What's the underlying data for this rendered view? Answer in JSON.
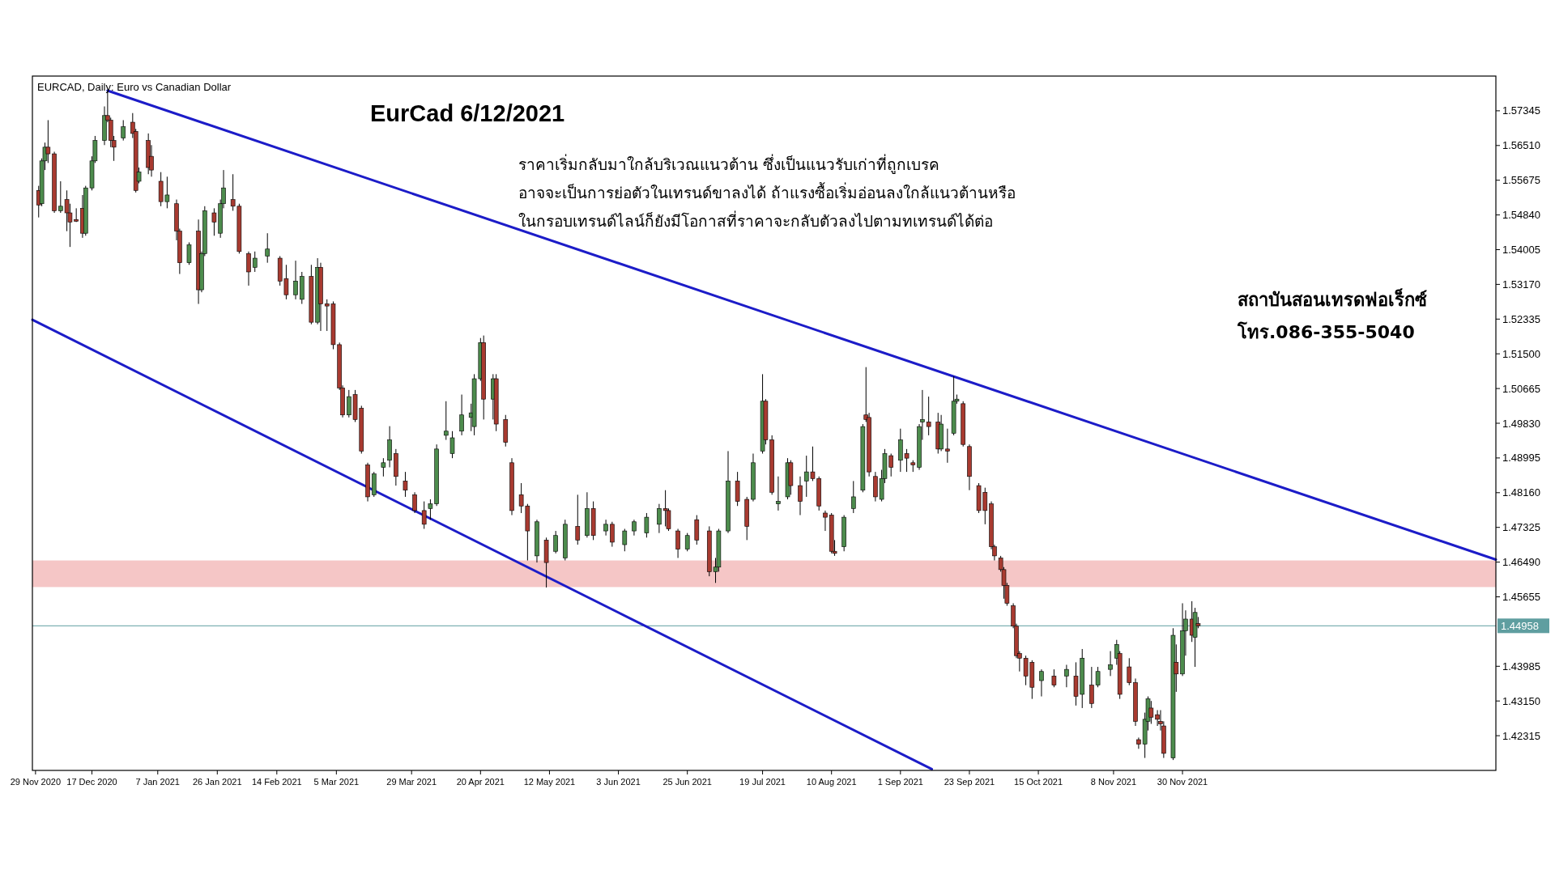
{
  "chart_data": {
    "type": "candlestick",
    "title": "EurCad 6/12/2021",
    "subtitle": "EURCAD, Daily:  Euro vs Canadian Dollar",
    "annotations": [
      "ราคาเริ่มกลับมาใกล้บริเวณแนวต้าน ซึ่งเป็นแนวรับเก่าที่ถูกเบรค",
      "อาจจะเป็นการย่อตัวในเทรนด์ขาลงได้ ถ้าแรงซื้อเริ่มอ่อนลงใกล้แนวต้านหรือ",
      "ในกรอบเทรนด์ไลน์ก็ยังมีโอกาสที่ราคาจะกลับตัวลงไปตามทเทรนด์ได้ต่อ",
      "สถาบันสอนเทรดฟอเร็กซ์",
      "โทร.086-355-5040"
    ],
    "xlim": [
      "2020-11-28",
      "2022-03-10"
    ],
    "xticks": [
      {
        "value": "2020-11-29",
        "label": "29 Nov 2020"
      },
      {
        "value": "2020-12-17",
        "label": "17 Dec 2020"
      },
      {
        "value": "2021-01-07",
        "label": "7 Jan 2021"
      },
      {
        "value": "2021-01-26",
        "label": "26 Jan 2021"
      },
      {
        "value": "2021-02-14",
        "label": "14 Feb 2021"
      },
      {
        "value": "2021-03-05",
        "label": "5 Mar 2021"
      },
      {
        "value": "2021-03-29",
        "label": "29 Mar 2021"
      },
      {
        "value": "2021-04-20",
        "label": "20 Apr 2021"
      },
      {
        "value": "2021-05-12",
        "label": "12 May 2021"
      },
      {
        "value": "2021-06-03",
        "label": "3 Jun 2021"
      },
      {
        "value": "2021-06-25",
        "label": "25 Jun 2021"
      },
      {
        "value": "2021-07-19",
        "label": "19 Jul 2021"
      },
      {
        "value": "2021-08-10",
        "label": "10 Aug 2021"
      },
      {
        "value": "2021-09-01",
        "label": "1 Sep 2021"
      },
      {
        "value": "2021-09-23",
        "label": "23 Sep 2021"
      },
      {
        "value": "2021-10-15",
        "label": "15 Oct 2021"
      },
      {
        "value": "2021-11-08",
        "label": "8 Nov 2021"
      },
      {
        "value": "2021-11-30",
        "label": "30 Nov 2021"
      }
    ],
    "ylim": [
      1.4148,
      1.5818
    ],
    "yticks": [
      1.57345,
      {
        "value": 1.5651,
        "label": "1.56510"
      },
      1.55675,
      {
        "value": 1.5484,
        "label": "1.54840"
      },
      1.54005,
      {
        "value": 1.5317,
        "label": "1.53170"
      },
      1.52335,
      {
        "value": 1.515,
        "label": "1.51500"
      },
      1.50665,
      {
        "value": 1.4983,
        "label": "1.49830"
      },
      1.48995,
      {
        "value": 1.4816,
        "label": "1.48160"
      },
      1.47325,
      {
        "value": 1.4649,
        "label": "1.46490"
      },
      1.45655,
      1.43985,
      {
        "value": 1.4315,
        "label": "1.43150"
      },
      1.42315
    ],
    "ref_lines": [
      {
        "axis": "y",
        "value": 1.44958,
        "label": "1.44958",
        "color": "#5f9ea0"
      }
    ],
    "bands": [
      {
        "axis": "y",
        "from": 1.4589,
        "to": 1.4653,
        "color": "#f5c6c6"
      }
    ],
    "x": [
      "2020-11-30",
      "2020-12-01",
      "2020-12-02",
      "2020-12-03",
      "2020-12-05",
      "2020-12-07",
      "2020-12-09",
      "2020-12-10",
      "2020-12-12",
      "2020-12-14",
      "2020-12-15",
      "2020-12-17",
      "2020-12-18",
      "2020-12-21",
      "2020-12-22",
      "2020-12-23",
      "2020-12-24",
      "2020-12-27",
      "2020-12-30",
      "2020-12-31",
      "2021-01-01",
      "2021-01-04",
      "2021-01-05",
      "2021-01-08",
      "2021-01-10",
      "2021-01-13",
      "2021-01-14",
      "2021-01-17",
      "2021-01-20",
      "2021-01-21",
      "2021-01-22",
      "2021-01-25",
      "2021-01-27",
      "2021-01-28",
      "2021-01-31",
      "2021-02-02",
      "2021-02-05",
      "2021-02-07",
      "2021-02-11",
      "2021-02-15",
      "2021-02-17",
      "2021-02-20",
      "2021-02-22",
      "2021-02-25",
      "2021-02-27",
      "2021-02-28",
      "2021-03-02",
      "2021-03-04",
      "2021-03-06",
      "2021-03-07",
      "2021-03-09",
      "2021-03-11",
      "2021-03-13",
      "2021-03-15",
      "2021-03-17",
      "2021-03-20",
      "2021-03-22",
      "2021-03-24",
      "2021-03-27",
      "2021-03-30",
      "2021-04-02",
      "2021-04-04",
      "2021-04-06",
      "2021-04-09",
      "2021-04-11",
      "2021-04-14",
      "2021-04-17",
      "2021-04-18",
      "2021-04-20",
      "2021-04-21",
      "2021-04-24",
      "2021-04-25",
      "2021-04-28",
      "2021-04-30",
      "2021-05-03",
      "2021-05-05",
      "2021-05-08",
      "2021-05-11",
      "2021-05-14",
      "2021-05-17",
      "2021-05-21",
      "2021-05-24",
      "2021-05-26",
      "2021-05-30",
      "2021-06-01",
      "2021-06-05",
      "2021-06-08",
      "2021-06-12",
      "2021-06-16",
      "2021-06-18",
      "2021-06-19",
      "2021-06-22",
      "2021-06-25",
      "2021-06-28",
      "2021-07-02",
      "2021-07-04",
      "2021-07-05",
      "2021-07-08",
      "2021-07-11",
      "2021-07-14",
      "2021-07-16",
      "2021-07-19",
      "2021-07-20",
      "2021-07-22",
      "2021-07-24",
      "2021-07-27",
      "2021-07-28",
      "2021-07-31",
      "2021-08-02",
      "2021-08-04",
      "2021-08-06",
      "2021-08-08",
      "2021-08-10",
      "2021-08-11",
      "2021-08-14",
      "2021-08-17",
      "2021-08-20",
      "2021-08-21",
      "2021-08-22",
      "2021-08-24",
      "2021-08-26",
      "2021-08-27",
      "2021-08-29",
      "2021-09-01",
      "2021-09-03",
      "2021-09-05",
      "2021-09-07",
      "2021-09-08",
      "2021-09-10",
      "2021-09-13",
      "2021-09-14",
      "2021-09-16",
      "2021-09-18",
      "2021-09-19",
      "2021-09-21",
      "2021-09-23",
      "2021-09-26",
      "2021-09-28",
      "2021-09-30",
      "2021-10-01",
      "2021-10-03",
      "2021-10-04",
      "2021-10-05",
      "2021-10-07",
      "2021-10-08",
      "2021-10-09",
      "2021-10-11",
      "2021-10-13",
      "2021-10-16",
      "2021-10-20",
      "2021-10-24",
      "2021-10-27",
      "2021-10-29",
      "2021-11-01",
      "2021-11-03",
      "2021-11-07",
      "2021-11-09",
      "2021-11-10",
      "2021-11-13",
      "2021-11-15",
      "2021-11-16",
      "2021-11-18",
      "2021-11-19",
      "2021-11-20",
      "2021-11-22",
      "2021-11-23",
      "2021-11-24",
      "2021-11-27",
      "2021-11-28",
      "2021-11-30",
      "2021-12-01",
      "2021-12-03",
      "2021-12-04",
      "2021-12-05"
    ],
    "ohlc": [
      [
        1.5543,
        1.5554,
        1.5478,
        1.5508
      ],
      [
        1.5511,
        1.562,
        1.5505,
        1.5614
      ],
      [
        1.5614,
        1.5658,
        1.5592,
        1.5647
      ],
      [
        1.5647,
        1.5712,
        1.5609,
        1.5631
      ],
      [
        1.5631,
        1.5636,
        1.5489,
        1.5494
      ],
      [
        1.5494,
        1.5565,
        1.5489,
        1.5505
      ],
      [
        1.5521,
        1.5543,
        1.5445,
        1.5489
      ],
      [
        1.5489,
        1.5511,
        1.5407,
        1.5467
      ],
      [
        1.5473,
        1.55,
        1.5467,
        1.5469
      ],
      [
        1.55,
        1.5532,
        1.5429,
        1.544
      ],
      [
        1.544,
        1.5554,
        1.5434,
        1.5549
      ],
      [
        1.5549,
        1.5625,
        1.5543,
        1.5614
      ],
      [
        1.5614,
        1.5674,
        1.5609,
        1.5663
      ],
      [
        1.5663,
        1.5745,
        1.5652,
        1.5723
      ],
      [
        1.5723,
        1.5783,
        1.5707,
        1.5712
      ],
      [
        1.5712,
        1.5718,
        1.5647,
        1.5663
      ],
      [
        1.5663,
        1.5674,
        1.5614,
        1.5647
      ],
      [
        1.5669,
        1.5712,
        1.5663,
        1.5696
      ],
      [
        1.5707,
        1.5729,
        1.5669,
        1.568
      ],
      [
        1.5685,
        1.5691,
        1.5538,
        1.5543
      ],
      [
        1.5565,
        1.5598,
        1.556,
        1.5587
      ],
      [
        1.5663,
        1.568,
        1.5582,
        1.5598
      ],
      [
        1.5625,
        1.5652,
        1.5576,
        1.5592
      ],
      [
        1.5565,
        1.5587,
        1.5505,
        1.5516
      ],
      [
        1.5516,
        1.5576,
        1.55,
        1.5532
      ],
      [
        1.5511,
        1.5521,
        1.5423,
        1.5445
      ],
      [
        1.5445,
        1.5451,
        1.5342,
        1.5369
      ],
      [
        1.5369,
        1.5418,
        1.5364,
        1.5412
      ],
      [
        1.5445,
        1.5473,
        1.527,
        1.5304
      ],
      [
        1.5304,
        1.5396,
        1.5298,
        1.5391
      ],
      [
        1.5391,
        1.5505,
        1.5385,
        1.5494
      ],
      [
        1.5489,
        1.55,
        1.5434,
        1.5467
      ],
      [
        1.544,
        1.5521,
        1.5429,
        1.5511
      ],
      [
        1.5511,
        1.5592,
        1.55,
        1.5549
      ],
      [
        1.5521,
        1.5582,
        1.5494,
        1.5505
      ],
      [
        1.5505,
        1.5511,
        1.5391,
        1.5396
      ],
      [
        1.5391,
        1.5396,
        1.5314,
        1.5347
      ],
      [
        1.5358,
        1.5396,
        1.5347,
        1.538
      ],
      [
        1.5385,
        1.544,
        1.5369,
        1.5402
      ],
      [
        1.538,
        1.5385,
        1.5314,
        1.5325
      ],
      [
        1.5331,
        1.5364,
        1.5281,
        1.5292
      ],
      [
        1.5292,
        1.5374,
        1.5281,
        1.5325
      ],
      [
        1.5281,
        1.5347,
        1.527,
        1.5336
      ],
      [
        1.5336,
        1.5364,
        1.5221,
        1.5226
      ],
      [
        1.5226,
        1.538,
        1.5221,
        1.5358
      ],
      [
        1.5358,
        1.5369,
        1.5205,
        1.527
      ],
      [
        1.527,
        1.5281,
        1.5205,
        1.5265
      ],
      [
        1.527,
        1.5276,
        1.5161,
        1.5172
      ],
      [
        1.5172,
        1.5177,
        1.5063,
        1.5068
      ],
      [
        1.5068,
        1.5074,
        1.4997,
        1.5003
      ],
      [
        1.5003,
        1.5063,
        1.4997,
        1.5047
      ],
      [
        1.5052,
        1.5063,
        1.4986,
        1.4992
      ],
      [
        1.5019,
        1.5025,
        1.491,
        1.4916
      ],
      [
        1.4883,
        1.4888,
        1.4795,
        1.4806
      ],
      [
        1.4811,
        1.4866,
        1.4806,
        1.4861
      ],
      [
        1.4877,
        1.4899,
        1.4855,
        1.4888
      ],
      [
        1.4894,
        1.4976,
        1.4877,
        1.4943
      ],
      [
        1.491,
        1.4921,
        1.4833,
        1.4855
      ],
      [
        1.4844,
        1.4866,
        1.4806,
        1.4822
      ],
      [
        1.4811,
        1.4817,
        1.4767,
        1.4773
      ],
      [
        1.4773,
        1.4795,
        1.4729,
        1.474
      ],
      [
        1.4778,
        1.48,
        1.4751,
        1.4789
      ],
      [
        1.4789,
        1.4932,
        1.4784,
        1.4921
      ],
      [
        1.4954,
        1.5036,
        1.4943,
        1.4964
      ],
      [
        1.491,
        1.4964,
        1.4899,
        1.4948
      ],
      [
        1.4964,
        1.5052,
        1.4954,
        1.5003
      ],
      [
        1.4997,
        1.503,
        1.4964,
        1.5008
      ],
      [
        1.4975,
        1.5101,
        1.4954,
        1.509
      ],
      [
        1.509,
        1.5188,
        1.5085,
        1.5177
      ],
      [
        1.5177,
        1.5194,
        1.4992,
        1.5041
      ],
      [
        1.5041,
        1.5101,
        1.4992,
        1.509
      ],
      [
        1.509,
        1.5101,
        1.4964,
        1.4981
      ],
      [
        1.4992,
        1.5003,
        1.4927,
        1.4937
      ],
      [
        1.4888,
        1.4899,
        1.4762,
        1.4773
      ],
      [
        1.4811,
        1.4839,
        1.4767,
        1.4784
      ],
      [
        1.4784,
        1.4789,
        1.4653,
        1.4724
      ],
      [
        1.4664,
        1.4751,
        1.4648,
        1.4746
      ],
      [
        1.4702,
        1.4708,
        1.4588,
        1.4648
      ],
      [
        1.4675,
        1.4724,
        1.467,
        1.4713
      ],
      [
        1.4659,
        1.4751,
        1.4653,
        1.474
      ],
      [
        1.4735,
        1.4811,
        1.4691,
        1.4702
      ],
      [
        1.4713,
        1.4817,
        1.4708,
        1.4778
      ],
      [
        1.4778,
        1.4795,
        1.4702,
        1.4713
      ],
      [
        1.4724,
        1.4751,
        1.4713,
        1.474
      ],
      [
        1.474,
        1.4746,
        1.4686,
        1.4697
      ],
      [
        1.4691,
        1.4729,
        1.4675,
        1.4724
      ],
      [
        1.4724,
        1.4751,
        1.4713,
        1.4746
      ],
      [
        1.4719,
        1.4767,
        1.4708,
        1.4757
      ],
      [
        1.474,
        1.4789,
        1.4719,
        1.4778
      ],
      [
        1.4778,
        1.4822,
        1.4735,
        1.4773
      ],
      [
        1.4773,
        1.4778,
        1.4724,
        1.4729
      ],
      [
        1.4724,
        1.4729,
        1.4659,
        1.468
      ],
      [
        1.468,
        1.4719,
        1.4675,
        1.4713
      ],
      [
        1.4751,
        1.4762,
        1.4691,
        1.4702
      ],
      [
        1.4724,
        1.4735,
        1.4615,
        1.4626
      ],
      [
        1.4626,
        1.4659,
        1.4599,
        1.4637
      ],
      [
        1.4637,
        1.4729,
        1.4626,
        1.4724
      ],
      [
        1.4724,
        1.4916,
        1.4719,
        1.4844
      ],
      [
        1.4844,
        1.4866,
        1.4784,
        1.4795
      ],
      [
        1.48,
        1.4806,
        1.4702,
        1.4735
      ],
      [
        1.48,
        1.491,
        1.4795,
        1.4888
      ],
      [
        1.4916,
        1.5101,
        1.491,
        1.5036
      ],
      [
        1.5036,
        1.5041,
        1.4932,
        1.4943
      ],
      [
        1.4943,
        1.4954,
        1.4811,
        1.4817
      ],
      [
        1.4789,
        1.4855,
        1.4773,
        1.4795
      ],
      [
        1.4806,
        1.4899,
        1.48,
        1.4888
      ],
      [
        1.4888,
        1.4894,
        1.4811,
        1.4833
      ],
      [
        1.4833,
        1.4855,
        1.4762,
        1.4795
      ],
      [
        1.4844,
        1.4905,
        1.4806,
        1.4866
      ],
      [
        1.4866,
        1.4927,
        1.4844,
        1.485
      ],
      [
        1.485,
        1.4855,
        1.4773,
        1.4784
      ],
      [
        1.4767,
        1.4773,
        1.4724,
        1.4757
      ],
      [
        1.4762,
        1.4767,
        1.467,
        1.4675
      ],
      [
        1.4675,
        1.4702,
        1.4664,
        1.467
      ],
      [
        1.4686,
        1.4762,
        1.4675,
        1.4757
      ],
      [
        1.4778,
        1.4844,
        1.4767,
        1.4806
      ],
      [
        1.4822,
        1.4981,
        1.4817,
        1.4975
      ],
      [
        1.5003,
        1.5118,
        1.4986,
        1.4992
      ],
      [
        1.4997,
        1.5008,
        1.4855,
        1.4866
      ],
      [
        1.4855,
        1.4866,
        1.4795,
        1.4806
      ],
      [
        1.48,
        1.4871,
        1.4795,
        1.485
      ],
      [
        1.485,
        1.4921,
        1.4839,
        1.491
      ],
      [
        1.4905,
        1.491,
        1.4855,
        1.4877
      ],
      [
        1.4894,
        1.497,
        1.4866,
        1.4943
      ],
      [
        1.491,
        1.4921,
        1.4866,
        1.4899
      ],
      [
        1.4888,
        1.4894,
        1.4866,
        1.4883
      ],
      [
        1.4877,
        1.4981,
        1.4871,
        1.4975
      ],
      [
        1.4986,
        1.5063,
        1.4943,
        1.4992
      ],
      [
        1.4986,
        1.5047,
        1.4954,
        1.4975
      ],
      [
        1.4986,
        1.5008,
        1.491,
        1.4921
      ],
      [
        1.4921,
        1.5003,
        1.4916,
        1.4981
      ],
      [
        1.4921,
        1.497,
        1.4888,
        1.4916
      ],
      [
        1.4959,
        1.5096,
        1.4954,
        1.5036
      ],
      [
        1.5036,
        1.5052,
        1.503,
        1.5041
      ],
      [
        1.503,
        1.5036,
        1.4927,
        1.4932
      ],
      [
        1.4927,
        1.4932,
        1.4822,
        1.4855
      ],
      [
        1.4833,
        1.4839,
        1.4767,
        1.4773
      ],
      [
        1.4817,
        1.4828,
        1.474,
        1.4773
      ],
      [
        1.4789,
        1.4795,
        1.468,
        1.4686
      ],
      [
        1.4686,
        1.4691,
        1.4653,
        1.4664
      ],
      [
        1.4659,
        1.4664,
        1.4626,
        1.4631
      ],
      [
        1.4631,
        1.4637,
        1.4561,
        1.4593
      ],
      [
        1.4593,
        1.4599,
        1.4544,
        1.455
      ],
      [
        1.4544,
        1.455,
        1.449,
        1.4495
      ],
      [
        1.4495,
        1.4501,
        1.4418,
        1.4424
      ],
      [
        1.4429,
        1.4435,
        1.4386,
        1.4418
      ],
      [
        1.4418,
        1.4424,
        1.4353,
        1.4375
      ],
      [
        1.4408,
        1.4413,
        1.432,
        1.4348
      ],
      [
        1.4364,
        1.4391,
        1.4326,
        1.4386
      ],
      [
        1.4375,
        1.4391,
        1.4348,
        1.4353
      ],
      [
        1.4375,
        1.4402,
        1.4348,
        1.4391
      ],
      [
        1.4375,
        1.4408,
        1.4304,
        1.4326
      ],
      [
        1.4331,
        1.444,
        1.4298,
        1.4418
      ],
      [
        1.4353,
        1.4397,
        1.4298,
        1.4309
      ],
      [
        1.4353,
        1.4397,
        1.4348,
        1.4386
      ],
      [
        1.4391,
        1.4435,
        1.4375,
        1.4402
      ],
      [
        1.4418,
        1.4462,
        1.4402,
        1.4451
      ],
      [
        1.4429,
        1.4435,
        1.432,
        1.4331
      ],
      [
        1.4397,
        1.4418,
        1.4353,
        1.4359
      ],
      [
        1.4359,
        1.4369,
        1.4255,
        1.4266
      ],
      [
        1.4222,
        1.4227,
        1.42,
        1.4211
      ],
      [
        1.4211,
        1.4287,
        1.4178,
        1.4271
      ],
      [
        1.4266,
        1.4326,
        1.4244,
        1.432
      ],
      [
        1.4298,
        1.4315,
        1.426,
        1.4276
      ],
      [
        1.4282,
        1.4293,
        1.4255,
        1.4271
      ],
      [
        1.4266,
        1.4293,
        1.4244,
        1.426
      ],
      [
        1.4255,
        1.4266,
        1.4178,
        1.4189
      ],
      [
        1.4178,
        1.449,
        1.4173,
        1.4473
      ],
      [
        1.4408,
        1.4451,
        1.4337,
        1.438
      ],
      [
        1.438,
        1.455,
        1.4375,
        1.4484
      ],
      [
        1.4484,
        1.4533,
        1.4424,
        1.4512
      ],
      [
        1.4512,
        1.4555,
        1.4457,
        1.4473
      ],
      [
        1.4468,
        1.4539,
        1.4397,
        1.4528
      ],
      [
        1.4501,
        1.4517,
        1.449,
        1.4496
      ]
    ],
    "colors": [
      "#a83a30",
      "#4d8c4d",
      "#4d8c4d",
      "#a83a30",
      "#a83a30",
      "#4d8c4d",
      "#a83a30",
      "#a83a30",
      "#a83a30",
      "#a83a30",
      "#4d8c4d",
      "#4d8c4d",
      "#4d8c4d",
      "#4d8c4d",
      "#a83a30",
      "#a83a30",
      "#a83a30",
      "#4d8c4d",
      "#a83a30",
      "#a83a30",
      "#4d8c4d",
      "#a83a30",
      "#a83a30",
      "#a83a30",
      "#4d8c4d",
      "#a83a30",
      "#a83a30",
      "#4d8c4d",
      "#a83a30",
      "#4d8c4d",
      "#4d8c4d",
      "#a83a30",
      "#4d8c4d",
      "#4d8c4d",
      "#a83a30",
      "#a83a30",
      "#a83a30",
      "#4d8c4d",
      "#4d8c4d",
      "#a83a30",
      "#a83a30",
      "#4d8c4d",
      "#4d8c4d",
      "#a83a30",
      "#4d8c4d",
      "#a83a30",
      "#a83a30",
      "#a83a30",
      "#a83a30",
      "#a83a30",
      "#4d8c4d",
      "#a83a30",
      "#a83a30",
      "#a83a30",
      "#4d8c4d",
      "#4d8c4d",
      "#4d8c4d",
      "#a83a30",
      "#a83a30",
      "#a83a30",
      "#a83a30",
      "#4d8c4d",
      "#4d8c4d",
      "#4d8c4d",
      "#4d8c4d",
      "#4d8c4d",
      "#4d8c4d",
      "#4d8c4d",
      "#4d8c4d",
      "#a83a30",
      "#4d8c4d",
      "#a83a30",
      "#a83a30",
      "#a83a30",
      "#a83a30",
      "#a83a30",
      "#4d8c4d",
      "#a83a30",
      "#4d8c4d",
      "#4d8c4d",
      "#a83a30",
      "#4d8c4d",
      "#a83a30",
      "#4d8c4d",
      "#a83a30",
      "#4d8c4d",
      "#4d8c4d",
      "#4d8c4d",
      "#4d8c4d",
      "#a83a30",
      "#a83a30",
      "#a83a30",
      "#4d8c4d",
      "#a83a30",
      "#a83a30",
      "#4d8c4d",
      "#4d8c4d",
      "#4d8c4d",
      "#a83a30",
      "#a83a30",
      "#4d8c4d",
      "#4d8c4d",
      "#a83a30",
      "#a83a30",
      "#4d8c4d",
      "#4d8c4d",
      "#a83a30",
      "#a83a30",
      "#4d8c4d",
      "#a83a30",
      "#a83a30",
      "#a83a30",
      "#a83a30",
      "#a83a30",
      "#4d8c4d",
      "#4d8c4d",
      "#4d8c4d",
      "#a83a30",
      "#a83a30",
      "#a83a30",
      "#4d8c4d",
      "#4d8c4d",
      "#a83a30",
      "#4d8c4d",
      "#a83a30",
      "#a83a30",
      "#4d8c4d",
      "#4d8c4d",
      "#a83a30",
      "#a83a30",
      "#4d8c4d",
      "#a83a30",
      "#4d8c4d",
      "#4d8c4d",
      "#a83a30",
      "#a83a30",
      "#a83a30",
      "#a83a30",
      "#a83a30",
      "#a83a30",
      "#a83a30",
      "#a83a30",
      "#a83a30",
      "#a83a30",
      "#a83a30",
      "#a83a30",
      "#a83a30",
      "#a83a30",
      "#4d8c4d",
      "#a83a30",
      "#4d8c4d",
      "#a83a30",
      "#4d8c4d",
      "#a83a30",
      "#4d8c4d",
      "#4d8c4d",
      "#4d8c4d",
      "#a83a30",
      "#a83a30",
      "#a83a30",
      "#a83a30",
      "#4d8c4d",
      "#4d8c4d",
      "#a83a30",
      "#a83a30",
      "#a83a30",
      "#a83a30",
      "#4d8c4d",
      "#a83a30",
      "#4d8c4d",
      "#4d8c4d",
      "#a83a30",
      "#4d8c4d",
      "#a83a30"
    ],
    "series": [
      {
        "type": "line",
        "x": [
          "2020-12-22",
          "2022-03-10"
        ],
        "values": [
          1.5783,
          1.4655
        ],
        "color": "#1c1cc8"
      },
      {
        "type": "line",
        "x": [
          "2020-11-28",
          "2021-09-11"
        ],
        "values": [
          1.5232,
          1.4151
        ],
        "color": "#1c1cc8"
      }
    ]
  }
}
